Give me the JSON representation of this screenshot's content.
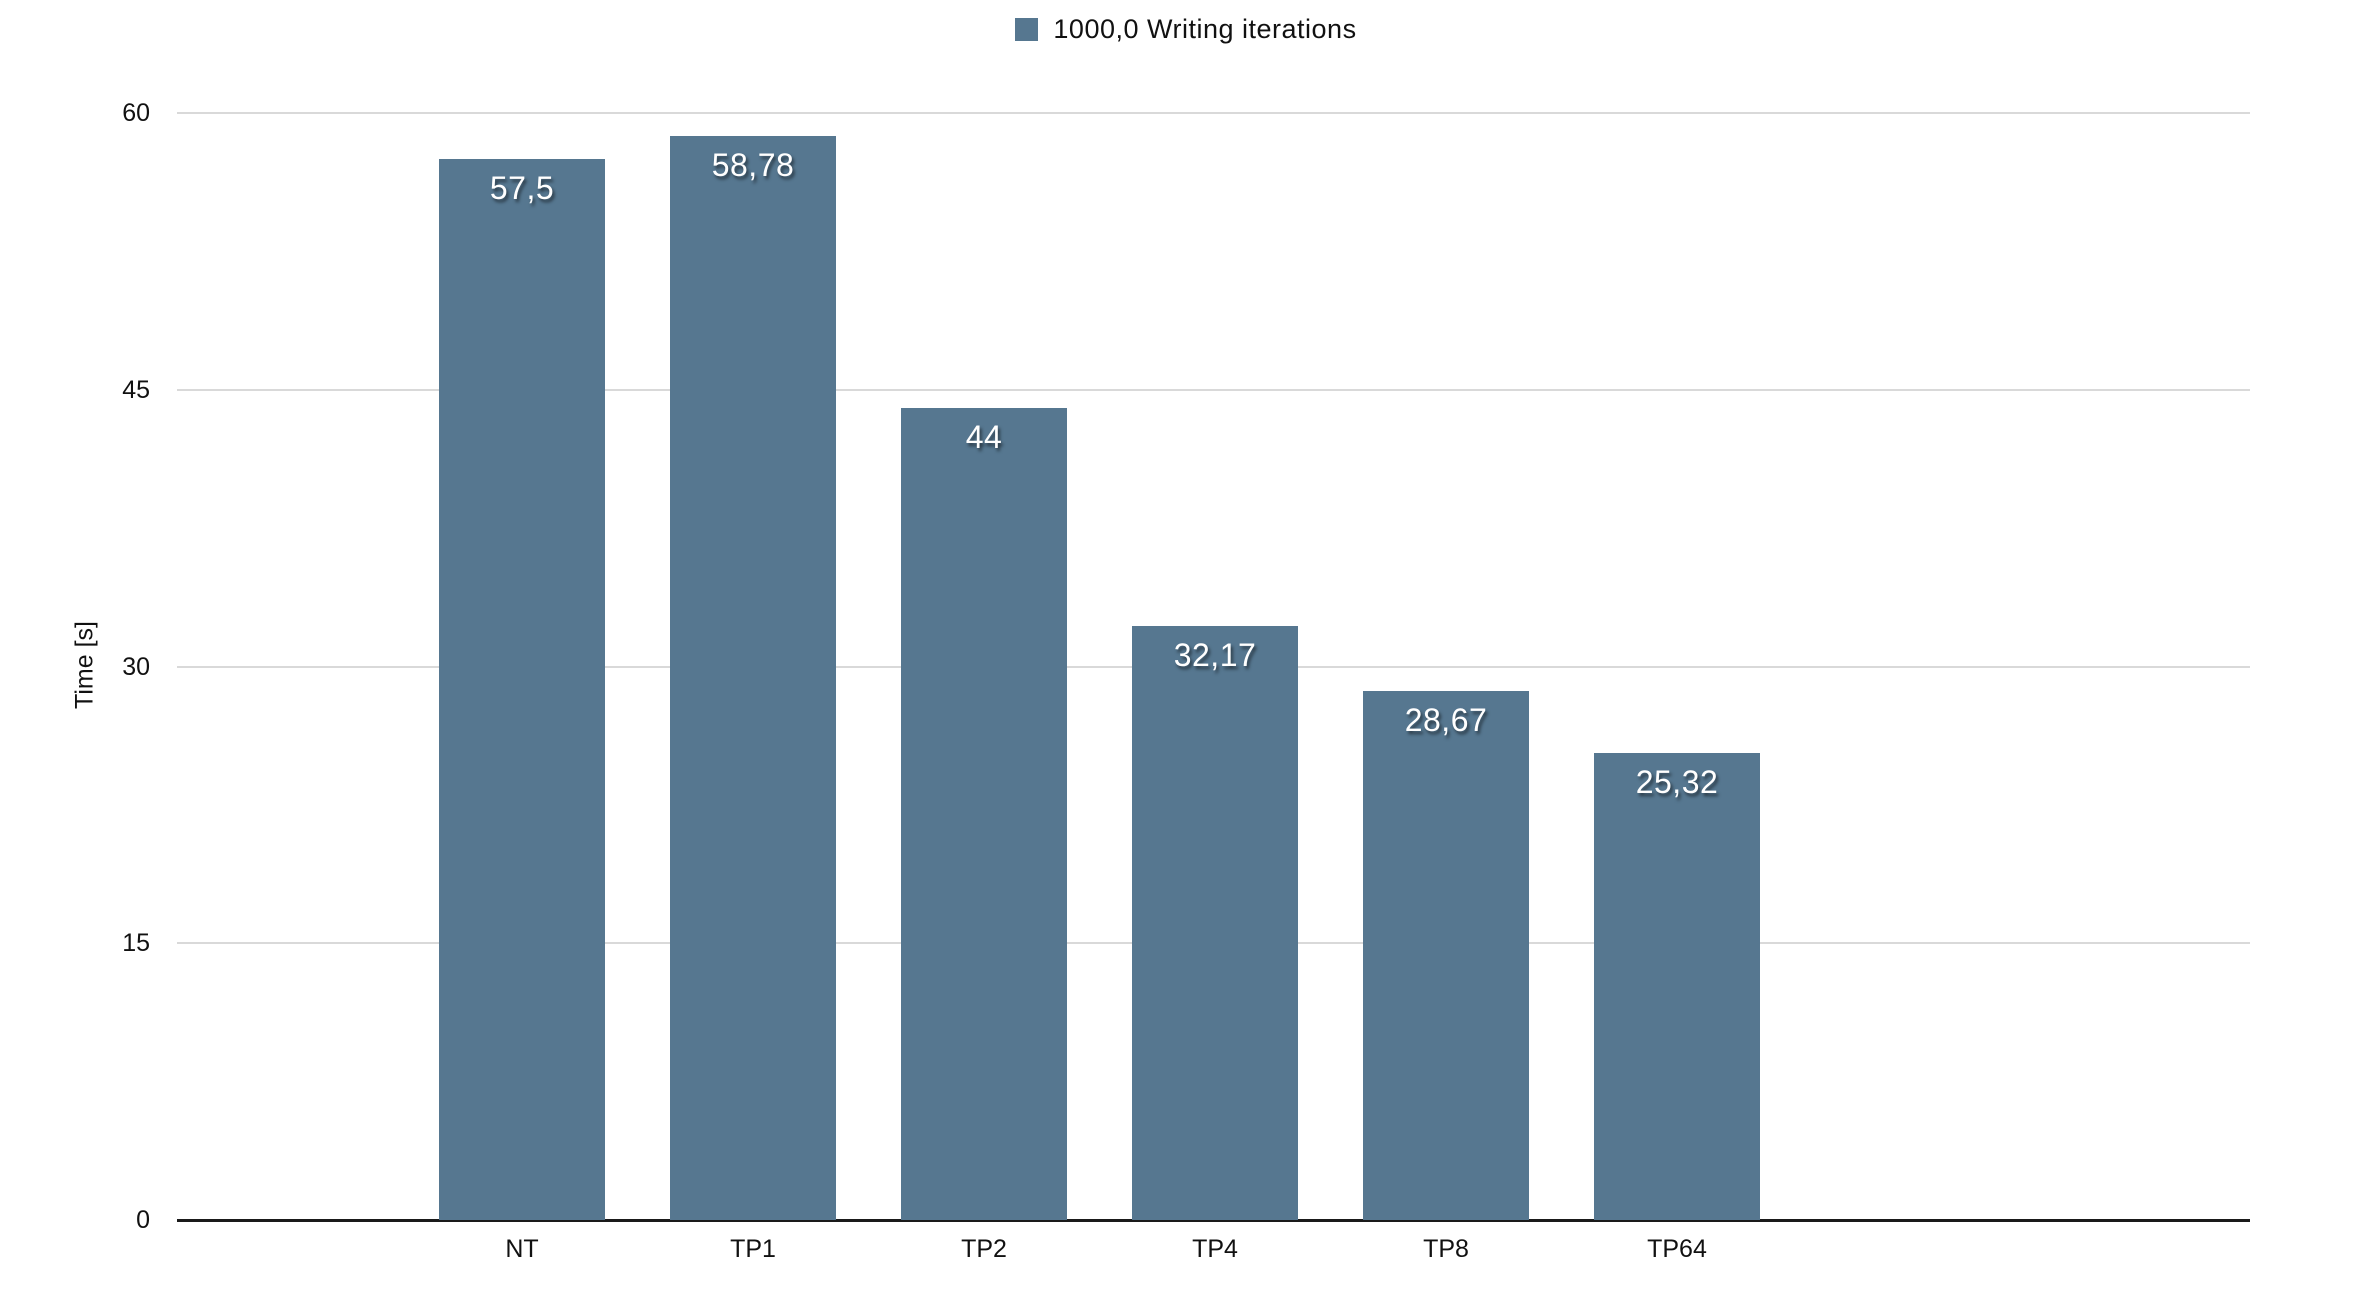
{
  "chart_data": {
    "type": "bar",
    "title": "",
    "legend": {
      "label": "1000,0 Writing iterations",
      "position": "top-center"
    },
    "categories": [
      "NT",
      "TP1",
      "TP2",
      "TP4",
      "TP8",
      "TP64"
    ],
    "values": [
      57.5,
      58.78,
      44,
      32.17,
      28.67,
      25.32
    ],
    "value_labels": [
      "57,5",
      "58,78",
      "44",
      "32,17",
      "28,67",
      "25,32"
    ],
    "series_name": "1000,0 Writing iterations",
    "xlabel": "",
    "ylabel": "Time [s]",
    "ylim": [
      0,
      60
    ],
    "yticks": [
      0,
      15,
      30,
      45,
      60
    ],
    "grid": true,
    "colors": {
      "bar": "#567790",
      "gridline": "#d9d9d9",
      "axis": "#1a1a1a",
      "value_label_text": "#ffffff",
      "tick_text": "#111111",
      "background": "#ffffff"
    }
  }
}
